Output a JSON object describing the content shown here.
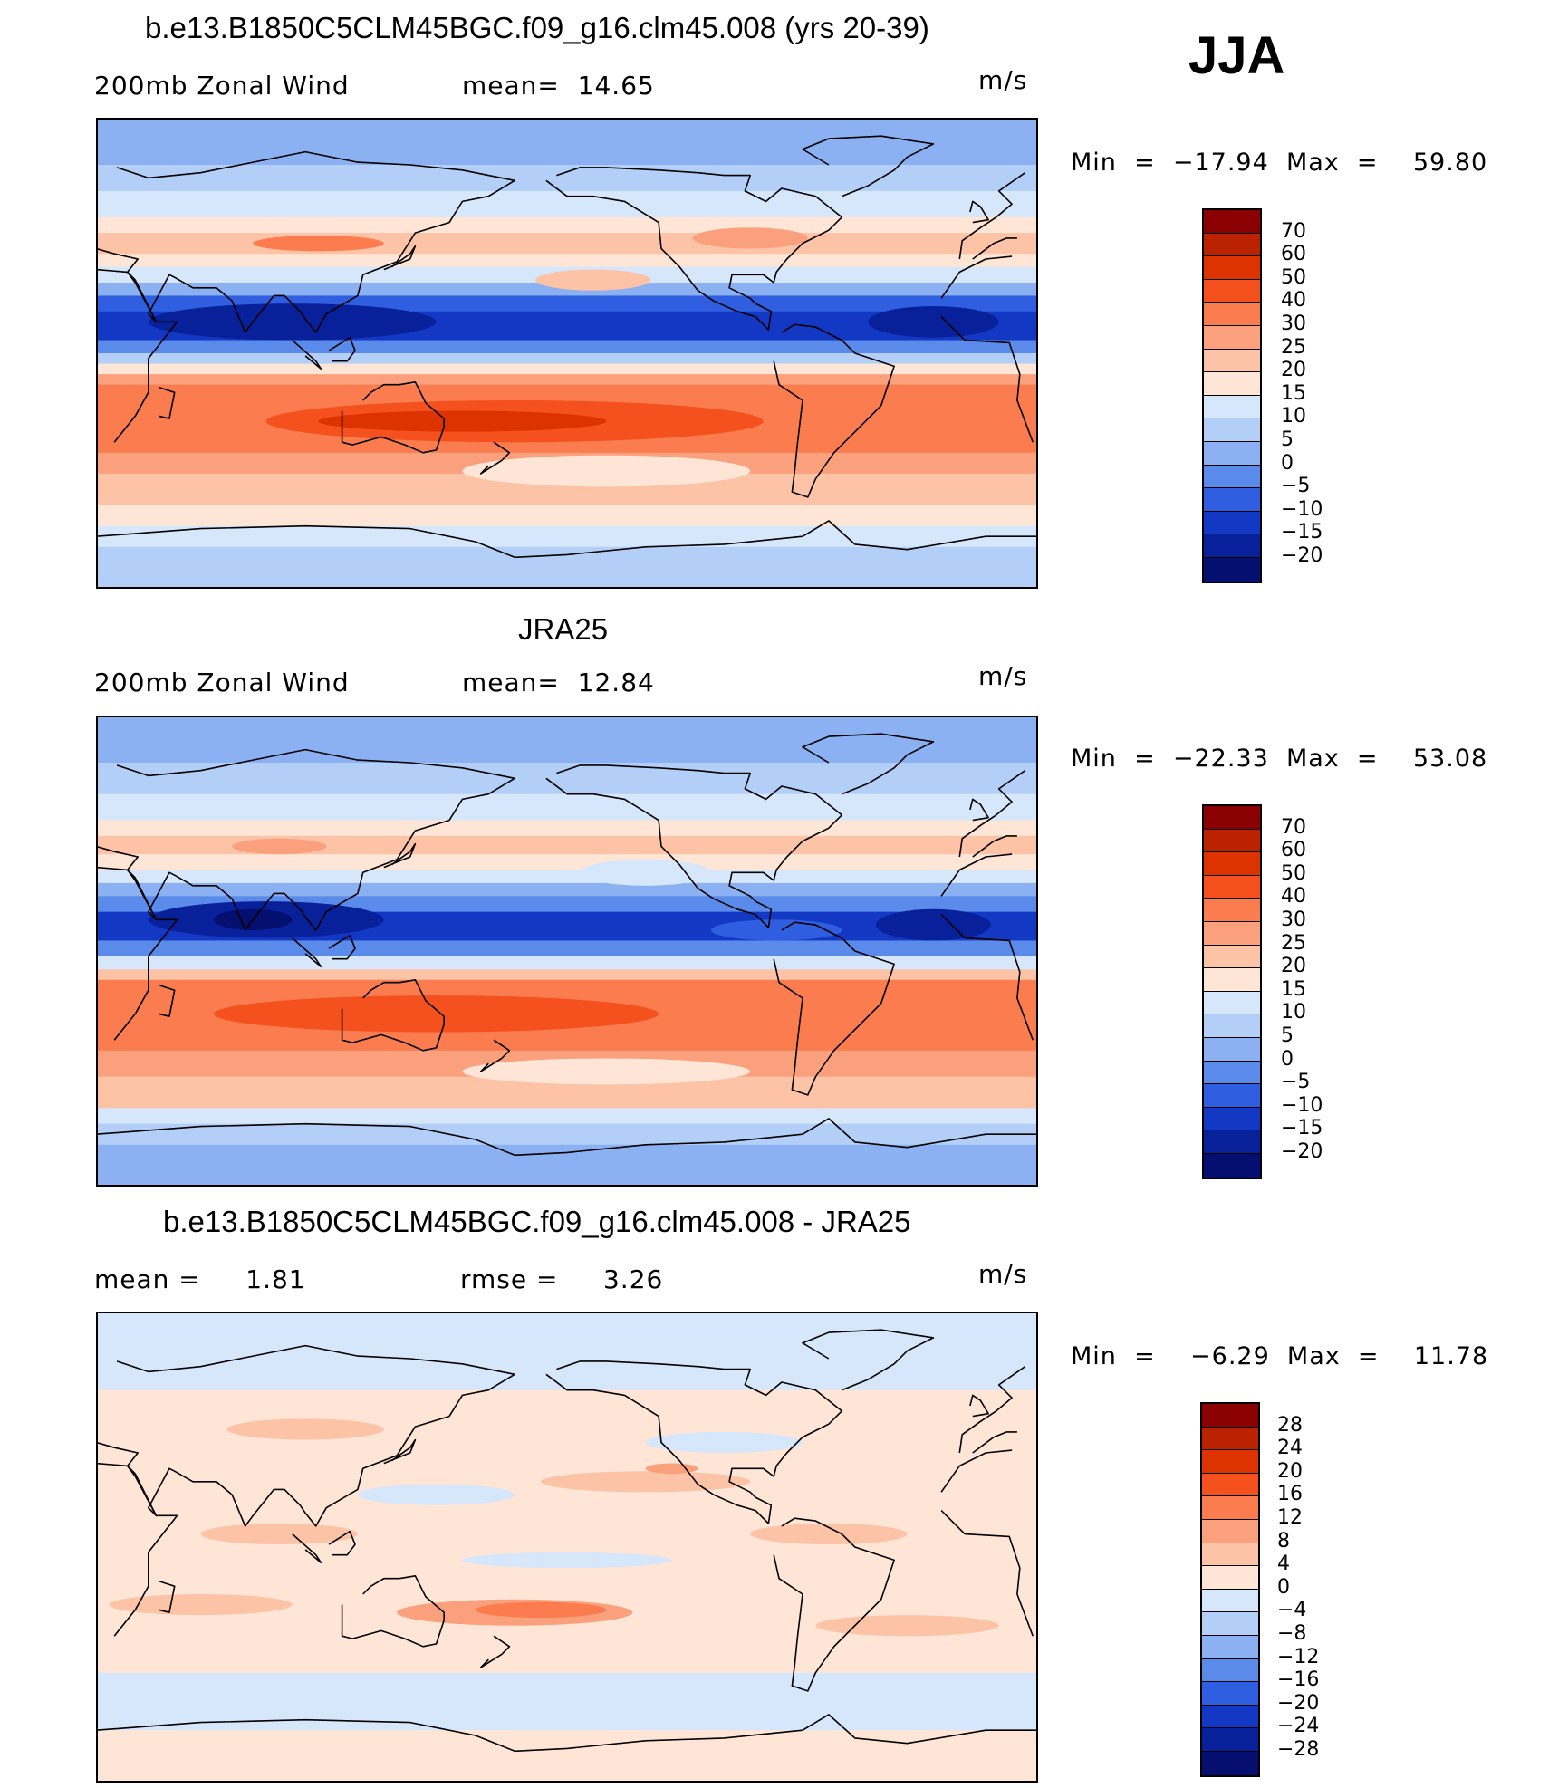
{
  "season": "JJA",
  "panels": [
    {
      "id": "model",
      "title": "b.e13.B1850C5CLM45BGC.f09_g16.clm45.008 (yrs 20-39)",
      "left_label": "200mb Zonal Wind",
      "center_label": "mean=  14.65",
      "units": "m/s",
      "stats": "Min  =  −17.94  Max  =    59.80",
      "colorbar_labels": [
        "70",
        "60",
        "50",
        "40",
        "30",
        "25",
        "20",
        "15",
        "10",
        "5",
        "0",
        "−5",
        "−10",
        "−15",
        "−20"
      ],
      "colorbar_colors": [
        "#8b0000",
        "#bb2200",
        "#dd3300",
        "#f4511e",
        "#fa7c4f",
        "#fba07c",
        "#fdc3a6",
        "#fee5d6",
        "#d6e7fb",
        "#b3cef7",
        "#8bb1f2",
        "#5b8bea",
        "#2f5fe0",
        "#1338c4",
        "#08219a",
        "#040f6f"
      ],
      "map_bands": [
        {
          "lat_top": 90,
          "lat_bot": 72,
          "color": "#8bb1f2"
        },
        {
          "lat_top": 72,
          "lat_bot": 62,
          "color": "#b3cef7"
        },
        {
          "lat_top": 62,
          "lat_bot": 52,
          "color": "#d6e7fb"
        },
        {
          "lat_top": 52,
          "lat_bot": 46,
          "color": "#fee5d6"
        },
        {
          "lat_top": 46,
          "lat_bot": 38,
          "color": "#fdc3a6"
        },
        {
          "lat_top": 38,
          "lat_bot": 33,
          "color": "#fee5d6"
        },
        {
          "lat_top": 33,
          "lat_bot": 27,
          "color": "#d6e7fb"
        },
        {
          "lat_top": 27,
          "lat_bot": 22,
          "color": "#8bb1f2"
        },
        {
          "lat_top": 22,
          "lat_bot": 16,
          "color": "#2f5fe0"
        },
        {
          "lat_top": 16,
          "lat_bot": 5,
          "color": "#1338c4"
        },
        {
          "lat_top": 5,
          "lat_bot": 0,
          "color": "#5b8bea"
        },
        {
          "lat_top": 0,
          "lat_bot": -4,
          "color": "#b3cef7"
        },
        {
          "lat_top": -4,
          "lat_bot": -8,
          "color": "#fee5d6"
        },
        {
          "lat_top": -8,
          "lat_bot": -12,
          "color": "#fba07c"
        },
        {
          "lat_top": -12,
          "lat_bot": -38,
          "color": "#fa7c4f"
        },
        {
          "lat_top": -38,
          "lat_bot": -46,
          "color": "#fba07c"
        },
        {
          "lat_top": -46,
          "lat_bot": -58,
          "color": "#fdc3a6"
        },
        {
          "lat_top": -58,
          "lat_bot": -66,
          "color": "#fee5d6"
        },
        {
          "lat_top": -66,
          "lat_bot": -74,
          "color": "#d6e7fb"
        },
        {
          "lat_top": -74,
          "lat_bot": -90,
          "color": "#b3cef7"
        }
      ],
      "map_blobs": [
        {
          "lon": 180,
          "lat": -26,
          "rx": 95,
          "ry": 8,
          "color": "#f4511e"
        },
        {
          "lon": 160,
          "lat": -26,
          "rx": 55,
          "ry": 4,
          "color": "#dd3300"
        },
        {
          "lon": 215,
          "lat": -45,
          "rx": 55,
          "ry": 6,
          "color": "#fee5d6"
        },
        {
          "lon": 95,
          "lat": 12,
          "rx": 55,
          "ry": 7,
          "color": "#08219a"
        },
        {
          "lon": 340,
          "lat": 12,
          "rx": 25,
          "ry": 6,
          "color": "#08219a"
        },
        {
          "lon": 105,
          "lat": 42,
          "rx": 25,
          "ry": 3,
          "color": "#fa7c4f"
        },
        {
          "lon": 210,
          "lat": 28,
          "rx": 22,
          "ry": 4,
          "color": "#fdc3a6"
        },
        {
          "lon": 270,
          "lat": 44,
          "rx": 22,
          "ry": 4,
          "color": "#fba07c"
        }
      ]
    },
    {
      "id": "obs",
      "title": "JRA25",
      "left_label": "200mb Zonal Wind",
      "center_label": "mean=  12.84",
      "units": "m/s",
      "stats": "Min  =  −22.33  Max  =    53.08",
      "colorbar_labels": [
        "70",
        "60",
        "50",
        "40",
        "30",
        "25",
        "20",
        "15",
        "10",
        "5",
        "0",
        "−5",
        "−10",
        "−15",
        "−20"
      ],
      "colorbar_colors": [
        "#8b0000",
        "#bb2200",
        "#dd3300",
        "#f4511e",
        "#fa7c4f",
        "#fba07c",
        "#fdc3a6",
        "#fee5d6",
        "#d6e7fb",
        "#b3cef7",
        "#8bb1f2",
        "#5b8bea",
        "#2f5fe0",
        "#1338c4",
        "#08219a",
        "#040f6f"
      ],
      "map_bands": [
        {
          "lat_top": 90,
          "lat_bot": 72,
          "color": "#8bb1f2"
        },
        {
          "lat_top": 72,
          "lat_bot": 60,
          "color": "#b3cef7"
        },
        {
          "lat_top": 60,
          "lat_bot": 50,
          "color": "#d6e7fb"
        },
        {
          "lat_top": 50,
          "lat_bot": 44,
          "color": "#fee5d6"
        },
        {
          "lat_top": 44,
          "lat_bot": 37,
          "color": "#fdc3a6"
        },
        {
          "lat_top": 37,
          "lat_bot": 31,
          "color": "#fee5d6"
        },
        {
          "lat_top": 31,
          "lat_bot": 26,
          "color": "#d6e7fb"
        },
        {
          "lat_top": 26,
          "lat_bot": 21,
          "color": "#8bb1f2"
        },
        {
          "lat_top": 21,
          "lat_bot": 15,
          "color": "#5b8bea"
        },
        {
          "lat_top": 15,
          "lat_bot": 4,
          "color": "#1338c4"
        },
        {
          "lat_top": 4,
          "lat_bot": -2,
          "color": "#5b8bea"
        },
        {
          "lat_top": -2,
          "lat_bot": -7,
          "color": "#d6e7fb"
        },
        {
          "lat_top": -7,
          "lat_bot": -11,
          "color": "#fdc3a6"
        },
        {
          "lat_top": -11,
          "lat_bot": -38,
          "color": "#fa7c4f"
        },
        {
          "lat_top": -38,
          "lat_bot": -48,
          "color": "#fba07c"
        },
        {
          "lat_top": -48,
          "lat_bot": -60,
          "color": "#fdc3a6"
        },
        {
          "lat_top": -60,
          "lat_bot": -66,
          "color": "#d6e7fb"
        },
        {
          "lat_top": -66,
          "lat_bot": -74,
          "color": "#b3cef7"
        },
        {
          "lat_top": -74,
          "lat_bot": -90,
          "color": "#8bb1f2"
        }
      ],
      "map_blobs": [
        {
          "lon": 150,
          "lat": -24,
          "rx": 85,
          "ry": 7,
          "color": "#f4511e"
        },
        {
          "lon": 215,
          "lat": -46,
          "rx": 55,
          "ry": 5,
          "color": "#fee5d6"
        },
        {
          "lon": 85,
          "lat": 12,
          "rx": 45,
          "ry": 7,
          "color": "#08219a"
        },
        {
          "lon": 80,
          "lat": 12,
          "rx": 15,
          "ry": 4,
          "color": "#040f6f"
        },
        {
          "lon": 340,
          "lat": 10,
          "rx": 22,
          "ry": 6,
          "color": "#08219a"
        },
        {
          "lon": 230,
          "lat": 30,
          "rx": 25,
          "ry": 5,
          "color": "#d6e7fb"
        },
        {
          "lon": 280,
          "lat": 8,
          "rx": 25,
          "ry": 4,
          "color": "#2f5fe0"
        },
        {
          "lon": 90,
          "lat": 40,
          "rx": 18,
          "ry": 3,
          "color": "#fba07c"
        }
      ]
    },
    {
      "id": "diff",
      "title": "b.e13.B1850C5CLM45BGC.f09_g16.clm45.008 - JRA25",
      "left_label": "mean =     1.81",
      "center_label": "rmse =     3.26",
      "units": "m/s",
      "stats": "Min  =    −6.29  Max  =    11.78",
      "colorbar_labels": [
        "28",
        "24",
        "20",
        "16",
        "12",
        "8",
        "4",
        "0",
        "−4",
        "−8",
        "−12",
        "−16",
        "−20",
        "−24",
        "−28"
      ],
      "colorbar_colors": [
        "#8b0000",
        "#bb2200",
        "#dd3300",
        "#f4511e",
        "#fa7c4f",
        "#fba07c",
        "#fdc3a6",
        "#fee5d6",
        "#d6e7fb",
        "#b3cef7",
        "#8bb1f2",
        "#5b8bea",
        "#2f5fe0",
        "#1338c4",
        "#08219a",
        "#040f6f"
      ],
      "map_bands": [
        {
          "lat_top": 90,
          "lat_bot": 60,
          "color": "#d6e7fb"
        },
        {
          "lat_top": 60,
          "lat_bot": -48,
          "color": "#fee5d6"
        },
        {
          "lat_top": -48,
          "lat_bot": -70,
          "color": "#d6e7fb"
        },
        {
          "lat_top": -70,
          "lat_bot": -90,
          "color": "#fee5d6"
        }
      ],
      "map_blobs": [
        {
          "lon": 180,
          "lat": -25,
          "rx": 45,
          "ry": 5,
          "color": "#fba07c"
        },
        {
          "lon": 190,
          "lat": -24,
          "rx": 25,
          "ry": 3,
          "color": "#fa7c4f"
        },
        {
          "lon": 230,
          "lat": 25,
          "rx": 40,
          "ry": 4,
          "color": "#fdc3a6"
        },
        {
          "lon": 240,
          "lat": 30,
          "rx": 10,
          "ry": 2,
          "color": "#fba07c"
        },
        {
          "lon": 260,
          "lat": 40,
          "rx": 30,
          "ry": 4,
          "color": "#d6e7fb"
        },
        {
          "lon": 60,
          "lat": -22,
          "rx": 35,
          "ry": 4,
          "color": "#fdc3a6"
        },
        {
          "lon": 90,
          "lat": 5,
          "rx": 30,
          "ry": 4,
          "color": "#fdc3a6"
        },
        {
          "lon": 150,
          "lat": 20,
          "rx": 30,
          "ry": 4,
          "color": "#d6e7fb"
        },
        {
          "lon": 200,
          "lat": -5,
          "rx": 40,
          "ry": 3,
          "color": "#d6e7fb"
        },
        {
          "lon": 300,
          "lat": 5,
          "rx": 30,
          "ry": 4,
          "color": "#fdc3a6"
        },
        {
          "lon": 100,
          "lat": 45,
          "rx": 30,
          "ry": 4,
          "color": "#fdc3a6"
        },
        {
          "lon": 330,
          "lat": -30,
          "rx": 35,
          "ry": 4,
          "color": "#fdc3a6"
        }
      ]
    }
  ]
}
